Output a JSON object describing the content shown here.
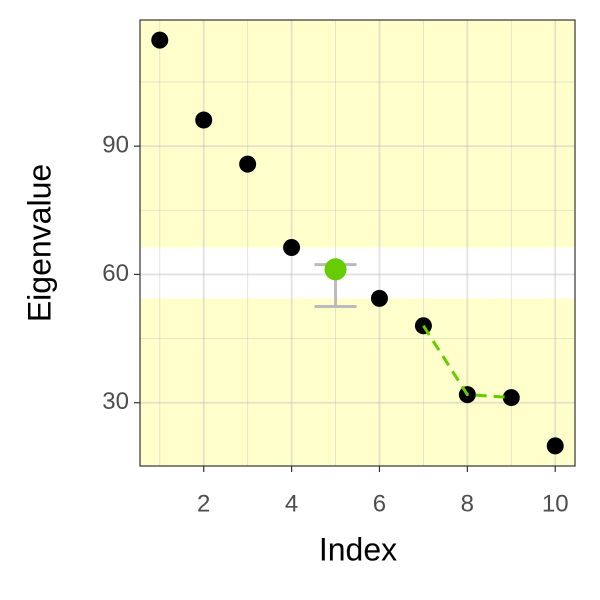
{
  "chart_data": {
    "type": "scatter",
    "xlabel": "Index",
    "ylabel": "Eigenvalue",
    "xlim": [
      0.55,
      10.45
    ],
    "ylim": [
      15.2,
      119.5
    ],
    "xticks": [
      2,
      4,
      6,
      8,
      10
    ],
    "yticks": [
      30,
      60,
      90
    ],
    "xminor": [
      1,
      3,
      5,
      7,
      9
    ],
    "yminor": [
      15,
      45,
      75,
      105
    ],
    "grid": true,
    "background": "#ffffcc",
    "band": {
      "range": [
        54.4,
        66.3
      ],
      "color": "#ffffff"
    },
    "series": [
      {
        "color": "#000000",
        "x": [
          1,
          2,
          3,
          4,
          6,
          7,
          8,
          9,
          10
        ],
        "values": [
          114.8,
          96.1,
          85.8,
          66.3,
          54.4,
          48.0,
          31.9,
          31.2,
          19.9
        ]
      },
      {
        "color": "#66cc00",
        "x": [
          5
        ],
        "values": [
          61.2
        ],
        "error_low": [
          52.5
        ],
        "error_high": [
          62.3
        ],
        "error_color": "#bbbbbb"
      },
      {
        "color": "#66cc00",
        "style": "dashed",
        "x": [
          7,
          8,
          9
        ],
        "values": [
          48.0,
          31.9,
          31.2
        ]
      }
    ]
  }
}
